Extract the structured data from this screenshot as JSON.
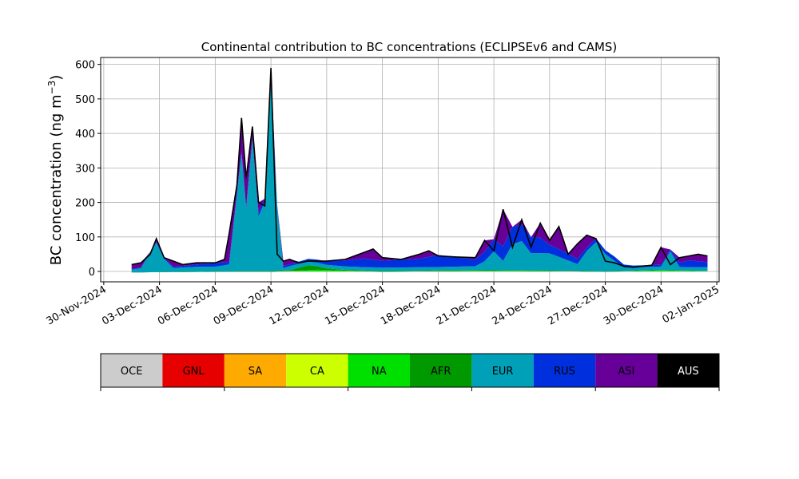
{
  "chart_data": {
    "type": "area",
    "title": "Continental contribution to BC concentrations (ECLIPSEv6 and CAMS)",
    "ylabel_text": "BC concentration (ng m",
    "ylabel_sup": "−3",
    "ylabel_close": ")",
    "xlabel": "",
    "ylim": [
      -30,
      620
    ],
    "xlim": [
      "2024-11-29T20:00",
      "2025-01-02T03:00"
    ],
    "grid": true,
    "yticks": [
      0,
      100,
      200,
      300,
      400,
      500,
      600
    ],
    "xticks": [
      {
        "date": "2024-11-30",
        "label": "30-Nov-2024"
      },
      {
        "date": "2024-12-03",
        "label": "03-Dec-2024"
      },
      {
        "date": "2024-12-06",
        "label": "06-Dec-2024"
      },
      {
        "date": "2024-12-09",
        "label": "09-Dec-2024"
      },
      {
        "date": "2024-12-12",
        "label": "12-Dec-2024"
      },
      {
        "date": "2024-12-15",
        "label": "15-Dec-2024"
      },
      {
        "date": "2024-12-18",
        "label": "18-Dec-2024"
      },
      {
        "date": "2024-12-21",
        "label": "21-Dec-2024"
      },
      {
        "date": "2024-12-24",
        "label": "24-Dec-2024"
      },
      {
        "date": "2024-12-27",
        "label": "27-Dec-2024"
      },
      {
        "date": "2024-12-30",
        "label": "30-Dec-2024"
      },
      {
        "date": "2025-01-02",
        "label": "02-Jan-2025"
      }
    ],
    "legend_position": "bottom",
    "regions": [
      {
        "name": "OCE",
        "color": "#cccccc"
      },
      {
        "name": "GNL",
        "color": "#e60000"
      },
      {
        "name": "SA",
        "color": "#ffaa00"
      },
      {
        "name": "CA",
        "color": "#ccff00"
      },
      {
        "name": "NA",
        "color": "#00e000"
      },
      {
        "name": "AFR",
        "color": "#009900"
      },
      {
        "name": "EUR",
        "color": "#00a0b8"
      },
      {
        "name": "RUS",
        "color": "#0030dd"
      },
      {
        "name": "ASI",
        "color": "#660099"
      },
      {
        "name": "AUS",
        "color": "#000000"
      }
    ],
    "series": [
      {
        "name": "NA",
        "color": "#00e000",
        "x": [
          "2024-12-01T12:00",
          "2024-12-03T00:00",
          "2024-12-06T00:00",
          "2024-12-09T00:00",
          "2024-12-11T12:00",
          "2024-12-15T00:00",
          "2024-12-18T00:00",
          "2024-12-21T00:00",
          "2024-12-24T00:00",
          "2024-12-27T00:00",
          "2024-12-30T00:00",
          "2025-01-01T00:00",
          "2025-01-01T12:00"
        ],
        "values": [
          -3,
          -2,
          -1,
          -1,
          5,
          -1,
          1,
          2,
          1,
          -1,
          3,
          1,
          1
        ]
      },
      {
        "name": "AFR",
        "color": "#009900",
        "x": [
          "2024-12-01T12:00",
          "2024-12-10T00:00",
          "2024-12-11T00:00",
          "2024-12-11T12:00",
          "2024-12-12T00:00",
          "2024-12-13T00:00",
          "2025-01-01T12:00"
        ],
        "values": [
          0,
          2,
          14,
          10,
          5,
          2,
          1
        ]
      },
      {
        "name": "EUR",
        "color": "#00a0b8",
        "x": [
          "2024-12-01T12:00",
          "2024-12-02T00:00",
          "2024-12-02T20:00",
          "2024-12-03T12:00",
          "2024-12-04T00:00",
          "2024-12-05T00:00",
          "2024-12-06T00:00",
          "2024-12-06T18:00",
          "2024-12-07T10:00",
          "2024-12-07T16:00",
          "2024-12-08T00:00",
          "2024-12-08T08:00",
          "2024-12-08T16:00",
          "2024-12-09T00:00",
          "2024-12-09T12:00",
          "2024-12-10T00:00",
          "2024-12-12T00:00",
          "2024-12-15T00:00",
          "2024-12-18T00:00",
          "2024-12-20T06:00",
          "2024-12-21T00:00",
          "2024-12-21T16:00",
          "2024-12-22T06:00",
          "2024-12-22T18:00",
          "2024-12-24T00:00",
          "2024-12-25T12:00",
          "2024-12-26T10:00",
          "2024-12-27T00:00",
          "2024-12-28T00:00",
          "2024-12-30T00:00",
          "2024-12-30T12:00",
          "2024-12-31T00:00",
          "2025-01-01T00:00",
          "2025-01-01T06:00",
          "2025-01-01T12:00"
        ],
        "values": [
          8,
          12,
          85,
          10,
          12,
          14,
          14,
          20,
          340,
          180,
          380,
          160,
          200,
          540,
          5,
          12,
          10,
          10,
          10,
          12,
          55,
          18,
          120,
          50,
          50,
          20,
          90,
          50,
          10,
          10,
          55,
          10,
          10,
          40,
          10
        ]
      },
      {
        "name": "RUS",
        "color": "#0030dd",
        "x": [
          "2024-12-01T12:00",
          "2024-12-02T20:00",
          "2024-12-04T00:00",
          "2024-12-06T00:00",
          "2024-12-07T10:00",
          "2024-12-08T00:00",
          "2024-12-09T00:00",
          "2024-12-10T00:00",
          "2024-12-12T00:00",
          "2024-12-14T00:00",
          "2024-12-15T00:00",
          "2024-12-17T00:00",
          "2024-12-18T00:00",
          "2024-12-20T00:00",
          "2024-12-21T00:00",
          "2024-12-22T00:00",
          "2024-12-23T12:00",
          "2024-12-24T00:00",
          "2024-12-25T00:00",
          "2024-12-26T00:00",
          "2024-12-27T12:00",
          "2024-12-28T12:00",
          "2024-12-30T12:00",
          "2024-12-31T12:00",
          "2025-01-01T12:00"
        ],
        "values": [
          2,
          3,
          4,
          10,
          6,
          10,
          10,
          5,
          10,
          25,
          20,
          25,
          35,
          20,
          35,
          50,
          45,
          25,
          20,
          10,
          12,
          5,
          5,
          20,
          15
        ]
      },
      {
        "name": "ASI",
        "color": "#660099",
        "x": [
          "2024-12-01T12:00",
          "2024-12-05T00:00",
          "2024-12-09T00:00",
          "2024-12-12T00:00",
          "2024-12-15T00:00",
          "2024-12-18T00:00",
          "2024-12-21T00:00",
          "2024-12-24T00:00",
          "2024-12-27T00:00",
          "2024-12-30T00:00",
          "2025-01-01T12:00"
        ],
        "values": [
          10,
          5,
          5,
          6,
          7,
          8,
          8,
          12,
          10,
          6,
          8
        ]
      }
    ],
    "total": {
      "name": "AUS",
      "color": "#000000",
      "x": [
        "2024-12-01T12:00",
        "2024-12-02T00:00",
        "2024-12-02T12:00",
        "2024-12-02T20:00",
        "2024-12-03T06:00",
        "2024-12-03T18:00",
        "2024-12-04T06:00",
        "2024-12-05T00:00",
        "2024-12-06T00:00",
        "2024-12-06T12:00",
        "2024-12-06T18:00",
        "2024-12-07T04:00",
        "2024-12-07T10:00",
        "2024-12-07T16:00",
        "2024-12-08T00:00",
        "2024-12-08T08:00",
        "2024-12-08T16:00",
        "2024-12-09T00:00",
        "2024-12-09T08:00",
        "2024-12-09T16:00",
        "2024-12-10T00:00",
        "2024-12-10T12:00",
        "2024-12-11T00:00",
        "2024-12-11T12:00",
        "2024-12-12T00:00",
        "2024-12-13T00:00",
        "2024-12-14T00:00",
        "2024-12-14T12:00",
        "2024-12-15T00:00",
        "2024-12-16T00:00",
        "2024-12-17T00:00",
        "2024-12-17T12:00",
        "2024-12-18T00:00",
        "2024-12-19T00:00",
        "2024-12-20T00:00",
        "2024-12-20T12:00",
        "2024-12-21T00:00",
        "2024-12-21T12:00",
        "2024-12-22T00:00",
        "2024-12-22T12:00",
        "2024-12-23T00:00",
        "2024-12-23T12:00",
        "2024-12-24T00:00",
        "2024-12-24T12:00",
        "2024-12-25T00:00",
        "2024-12-25T12:00",
        "2024-12-26T00:00",
        "2024-12-26T12:00",
        "2024-12-27T00:00",
        "2024-12-27T12:00",
        "2024-12-28T00:00",
        "2024-12-28T12:00",
        "2024-12-29T12:00",
        "2024-12-30T00:00",
        "2024-12-30T12:00",
        "2024-12-31T00:00",
        "2024-12-31T12:00",
        "2025-01-01T00:00",
        "2025-01-01T12:00"
      ],
      "values": [
        20,
        25,
        50,
        95,
        40,
        30,
        20,
        25,
        25,
        35,
        110,
        250,
        445,
        270,
        420,
        200,
        190,
        590,
        50,
        30,
        35,
        25,
        30,
        30,
        30,
        35,
        55,
        65,
        40,
        35,
        50,
        60,
        45,
        42,
        40,
        90,
        60,
        180,
        70,
        150,
        70,
        140,
        90,
        130,
        50,
        80,
        105,
        95,
        30,
        25,
        15,
        12,
        18,
        70,
        20,
        40,
        45,
        50,
        45
      ]
    }
  }
}
